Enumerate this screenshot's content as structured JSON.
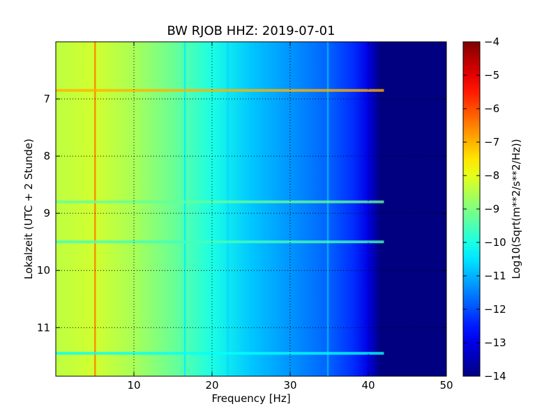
{
  "chart_data": {
    "type": "heatmap",
    "title": "BW RJOB HHZ: 2019-07-01",
    "xlabel": "Frequency [Hz]",
    "ylabel": "Lokalzeit (UTC + 2 Stunde)",
    "xlim": [
      0,
      50
    ],
    "ylim": [
      11.85,
      6.0
    ],
    "x_ticks": [
      10,
      20,
      30,
      40,
      50
    ],
    "y_ticks": [
      7,
      8,
      9,
      10,
      11
    ],
    "grid": true,
    "colorbar": {
      "label": "Log10(Sqrt(m**2/s**2/Hz))",
      "range": [
        -14,
        -4
      ],
      "ticks": [
        -4,
        -5,
        -6,
        -7,
        -8,
        -9,
        -10,
        -11,
        -12,
        -13,
        -14
      ],
      "colormap": "jet"
    },
    "gradient_profile": [
      {
        "f": 0,
        "v": -8.4
      },
      {
        "f": 5,
        "v": -8.2
      },
      {
        "f": 10,
        "v": -8.6
      },
      {
        "f": 15,
        "v": -9.2
      },
      {
        "f": 20,
        "v": -10.0
      },
      {
        "f": 25,
        "v": -10.8
      },
      {
        "f": 30,
        "v": -11.3
      },
      {
        "f": 35,
        "v": -11.8
      },
      {
        "f": 38,
        "v": -12.3
      },
      {
        "f": 40,
        "v": -13.0
      },
      {
        "f": 41.5,
        "v": -14.0
      },
      {
        "f": 50,
        "v": -14.0
      }
    ],
    "persistent_lines": [
      {
        "f": 5.0,
        "v": -6.5
      },
      {
        "f": 16.5,
        "v": -10.4
      },
      {
        "f": 22.0,
        "v": -10.6
      },
      {
        "f": 34.8,
        "v": -11.0
      }
    ],
    "horizontal_events": [
      {
        "t": 6.85,
        "v": -7.0
      },
      {
        "t": 8.8,
        "v": -9.3
      },
      {
        "t": 9.5,
        "v": -9.6
      },
      {
        "t": 11.45,
        "v": -10.2
      }
    ]
  }
}
